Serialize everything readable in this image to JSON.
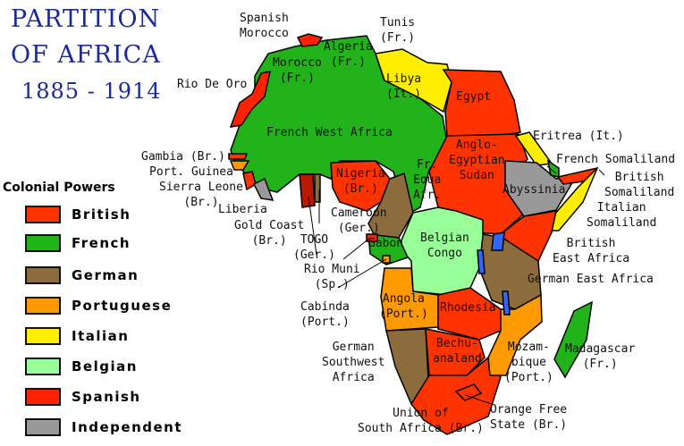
{
  "title": {
    "line1": "PARTITION",
    "line2": "OF AFRICA",
    "years": "1885 - 1914"
  },
  "legend": {
    "title": "Colonial Powers",
    "items": [
      {
        "label": "British",
        "color": "#ff3300"
      },
      {
        "label": "French",
        "color": "#22b21a"
      },
      {
        "label": "German",
        "color": "#8c6c3c"
      },
      {
        "label": "Portuguese",
        "color": "#ff9900"
      },
      {
        "label": "Italian",
        "color": "#ffee00"
      },
      {
        "label": "Belgian",
        "color": "#99ff99"
      },
      {
        "label": "Spanish",
        "color": "#ff2200"
      },
      {
        "label": "Independent",
        "color": "#999999"
      }
    ]
  },
  "colors": {
    "gold_coast": "#bb1800",
    "lakes": "#3366ff",
    "outline": "#000000"
  },
  "labels": [
    {
      "id": "spanish-morocco",
      "text": "Spanish\nMorocco"
    },
    {
      "id": "tunis",
      "text": "Tunis\n(Fr.)"
    },
    {
      "id": "algeria",
      "text": "Algeria\n(Fr.)"
    },
    {
      "id": "morocco",
      "text": "Morocco\n(Fr.)"
    },
    {
      "id": "rio-de-oro",
      "text": "Rio De Oro"
    },
    {
      "id": "libya",
      "text": "Libya\n(It.)"
    },
    {
      "id": "egypt",
      "text": "Egypt"
    },
    {
      "id": "french-west-africa",
      "text": "French West Africa"
    },
    {
      "id": "anglo-egyptian-sudan",
      "text": "Anglo-\nEgyptian\nSudan"
    },
    {
      "id": "eritrea",
      "text": "Eritrea (It.)"
    },
    {
      "id": "french-somaliland",
      "text": "French Somaliland"
    },
    {
      "id": "british-somaliland",
      "text": "British\nSomaliland"
    },
    {
      "id": "italian-somaliland",
      "text": "Italian\nSomaliland"
    },
    {
      "id": "abyssinia",
      "text": "Abyssinia"
    },
    {
      "id": "gambia",
      "text": "Gambia (Br.)"
    },
    {
      "id": "port-guinea",
      "text": "Port. Guinea"
    },
    {
      "id": "sierra-leone",
      "text": "Sierra Leone\n(Br.)"
    },
    {
      "id": "liberia",
      "text": "Liberia"
    },
    {
      "id": "gold-coast",
      "text": "Gold Coast\n(Br.)"
    },
    {
      "id": "togo",
      "text": "TOGO\n(Ger.)"
    },
    {
      "id": "nigeria",
      "text": "Nigeria\n(Br.)"
    },
    {
      "id": "cameroon",
      "text": "Cameroon\n(Ger.)"
    },
    {
      "id": "fr-equa-afr",
      "text": "Fr.\nEqua\nAfr."
    },
    {
      "id": "gabon",
      "text": "Gabon"
    },
    {
      "id": "rio-muni",
      "text": "Rio Muni\n(Sp.)"
    },
    {
      "id": "cabinda",
      "text": "Cabinda\n(Port.)"
    },
    {
      "id": "belgian-congo",
      "text": "Belgian\nCongo"
    },
    {
      "id": "british-east-africa",
      "text": "British\nEast Africa"
    },
    {
      "id": "german-east-africa",
      "text": "German East Africa"
    },
    {
      "id": "angola",
      "text": "Angola\n(Port.)"
    },
    {
      "id": "rhodesia",
      "text": "Rhodesia"
    },
    {
      "id": "german-southwest-africa",
      "text": "German\nSouthwest\nAfrica"
    },
    {
      "id": "bechuanaland",
      "text": "Bechu-\nanaland"
    },
    {
      "id": "mozambique",
      "text": "Mozam-\nbique\n(Port.)"
    },
    {
      "id": "madagascar",
      "text": "Madagascar\n(Fr.)"
    },
    {
      "id": "union-of-south-africa",
      "text": "Union of\nSouth Africa (Br.)"
    },
    {
      "id": "orange-free-state",
      "text": "Orange Free\nState (Br.)"
    }
  ]
}
